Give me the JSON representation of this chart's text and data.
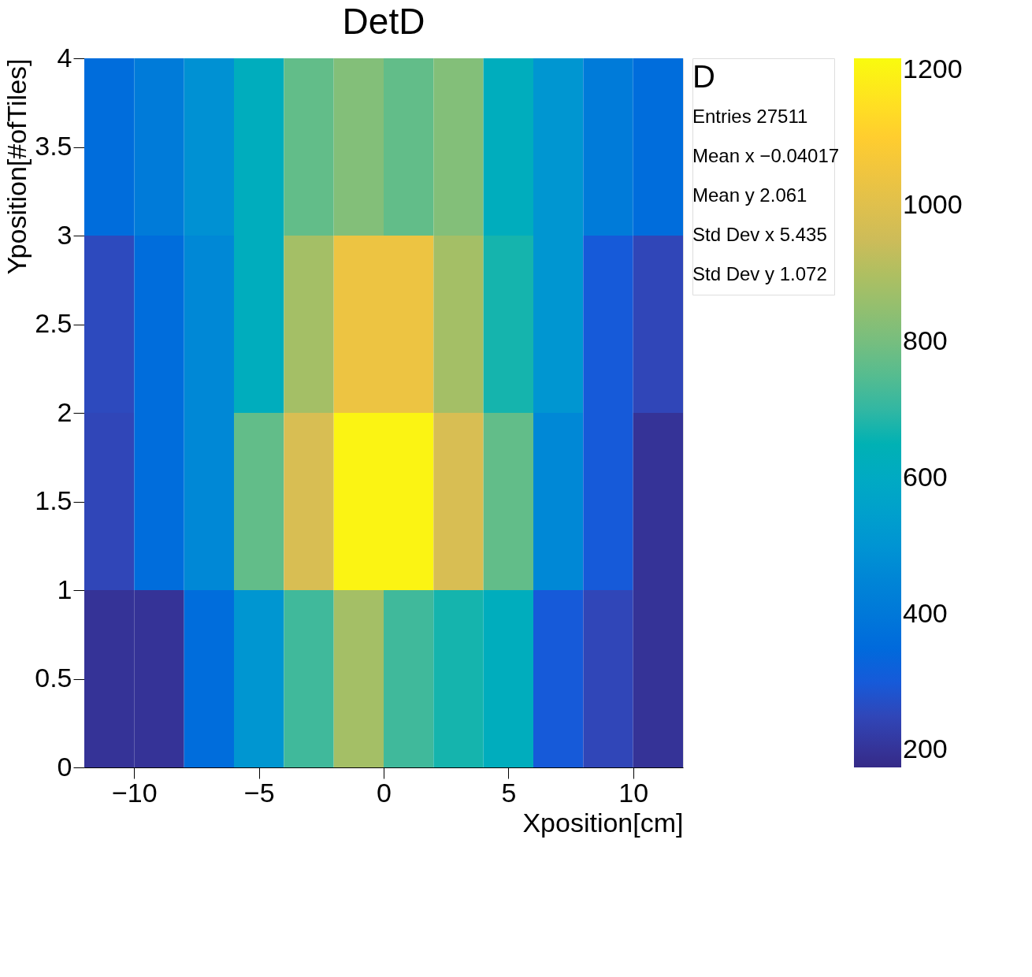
{
  "chart_data": {
    "type": "heatmap",
    "title": "DetD",
    "xlabel": "Xposition[cm]",
    "ylabel": "Yposition[#ofTiles]",
    "x": [
      -11,
      -9,
      -7,
      -5,
      -3,
      -1,
      1,
      3,
      5,
      7,
      9,
      11
    ],
    "y": [
      3.5,
      2.5,
      1.5,
      0.5
    ],
    "cells": [
      [
        360,
        410,
        490,
        620,
        770,
        820,
        770,
        820,
        620,
        510,
        410,
        360
      ],
      [
        260,
        360,
        460,
        620,
        880,
        1040,
        1040,
        880,
        670,
        510,
        300,
        250
      ],
      [
        250,
        360,
        460,
        770,
        980,
        1200,
        1200,
        980,
        770,
        460,
        300,
        200
      ],
      [
        200,
        200,
        360,
        510,
        720,
        880,
        720,
        670,
        620,
        300,
        250,
        200
      ]
    ],
    "xlim": [
      -12,
      12
    ],
    "ylim": [
      0,
      4
    ],
    "xticks": [
      -10,
      -5,
      0,
      5,
      10
    ],
    "yticks": [
      0,
      0.5,
      1,
      1.5,
      2,
      2.5,
      3,
      3.5,
      4
    ],
    "clim": [
      175,
      1217
    ],
    "cticks": [
      200,
      400,
      600,
      800,
      1000,
      1200
    ],
    "annotations": [
      "D",
      "Entries 27511",
      "Mean x −0.04017",
      "Mean y 2.061",
      "Std Dev x 5.435",
      "Std Dev y 1.072"
    ]
  }
}
